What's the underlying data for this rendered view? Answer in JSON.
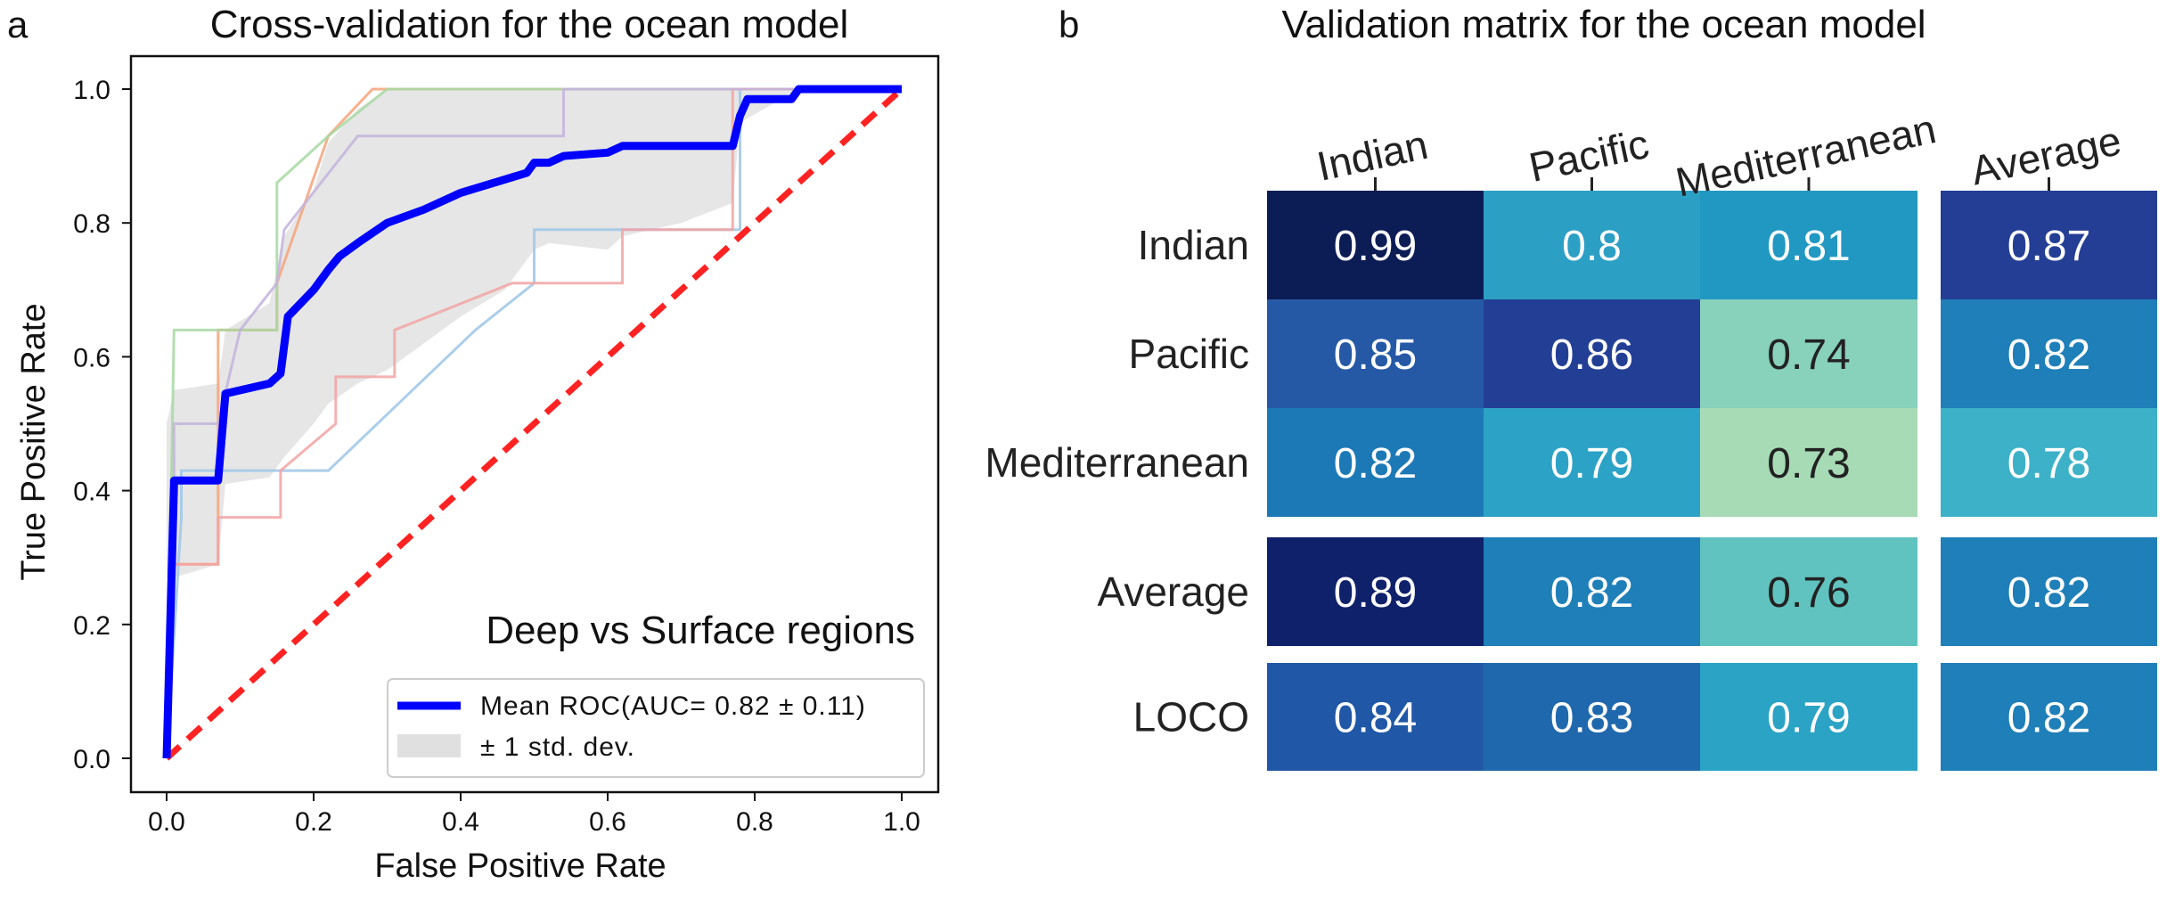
{
  "panels": {
    "a_letter": "a",
    "b_letter": "b"
  },
  "chart_data": [
    {
      "type": "line",
      "title": "Cross-validation for the ocean model",
      "xlabel": "False Positive Rate",
      "ylabel": "True Positive Rate",
      "xlim": [
        0.0,
        1.0
      ],
      "ylim": [
        0.0,
        1.0
      ],
      "xticks": [
        "0.0",
        "0.2",
        "0.4",
        "0.6",
        "0.8",
        "1.0"
      ],
      "yticks": [
        "0.0",
        "0.2",
        "0.4",
        "0.6",
        "0.8",
        "1.0"
      ],
      "grid": false,
      "annotation": "Deep vs Surface regions",
      "legend_position": "lower-right",
      "legend": [
        {
          "label": "Mean ROC(AUC= 0.82 ±  0.11)",
          "color": "#0000ff",
          "kind": "line"
        },
        {
          "label": "±  1 std. dev.",
          "color": "#e0e0e0",
          "kind": "patch"
        }
      ],
      "mean_roc": {
        "color": "#0000ff",
        "x": [
          0.0,
          0.01,
          0.01,
          0.07,
          0.08,
          0.14,
          0.155,
          0.165,
          0.2,
          0.22,
          0.235,
          0.26,
          0.3,
          0.35,
          0.4,
          0.46,
          0.49,
          0.5,
          0.52,
          0.54,
          0.6,
          0.62,
          0.7,
          0.77,
          0.78,
          0.79,
          0.85,
          0.86,
          0.9,
          0.95,
          1.0
        ],
        "y": [
          0.0,
          0.41,
          0.415,
          0.415,
          0.545,
          0.56,
          0.575,
          0.66,
          0.7,
          0.73,
          0.75,
          0.77,
          0.8,
          0.82,
          0.845,
          0.865,
          0.875,
          0.89,
          0.89,
          0.9,
          0.905,
          0.915,
          0.915,
          0.915,
          0.96,
          0.985,
          0.985,
          1.0,
          1.0,
          1.0,
          1.0
        ]
      },
      "chance_line": {
        "color": "#ff2222",
        "x": [
          0.0,
          1.0
        ],
        "y": [
          0.0,
          1.0
        ]
      },
      "std_band": {
        "color": "#d9d9d9",
        "x": [
          0.0,
          0.01,
          0.07,
          0.08,
          0.14,
          0.16,
          0.2,
          0.22,
          0.26,
          0.3,
          0.35,
          0.4,
          0.46,
          0.5,
          0.52,
          0.6,
          0.62,
          0.7,
          0.77,
          0.78,
          0.86,
          1.0
        ],
        "upper": [
          0.5,
          0.55,
          0.56,
          0.64,
          0.68,
          0.78,
          0.85,
          0.92,
          0.97,
          1.0,
          1.0,
          1.0,
          1.0,
          1.0,
          1.0,
          1.0,
          1.0,
          1.0,
          1.0,
          1.0,
          1.0,
          1.0
        ],
        "lower": [
          0.27,
          0.27,
          0.29,
          0.41,
          0.42,
          0.45,
          0.5,
          0.53,
          0.56,
          0.58,
          0.62,
          0.66,
          0.7,
          0.76,
          0.77,
          0.76,
          0.78,
          0.8,
          0.83,
          0.95,
          1.0,
          1.0
        ]
      },
      "folds": [
        {
          "color": "#9ec5e6",
          "x": [
            0.0,
            0.02,
            0.02,
            0.22,
            0.42,
            0.5,
            0.5,
            0.77,
            0.78,
            0.78,
            0.86,
            0.86,
            1.0
          ],
          "y": [
            0.0,
            0.36,
            0.43,
            0.43,
            0.64,
            0.71,
            0.79,
            0.79,
            0.79,
            1.0,
            1.0,
            1.0,
            1.0
          ]
        },
        {
          "color": "#f4a37a",
          "x": [
            0.0,
            0.01,
            0.01,
            0.07,
            0.07,
            0.15,
            0.15,
            0.22,
            0.28,
            0.32,
            1.0
          ],
          "y": [
            0.0,
            0.29,
            0.29,
            0.29,
            0.64,
            0.64,
            0.71,
            0.93,
            1.0,
            1.0,
            1.0
          ]
        },
        {
          "color": "#a7d8a2",
          "x": [
            0.0,
            0.01,
            0.01,
            0.15,
            0.15,
            0.22,
            0.3,
            1.0
          ],
          "y": [
            0.0,
            0.64,
            0.64,
            0.64,
            0.86,
            0.93,
            1.0,
            1.0
          ]
        },
        {
          "color": "#f2a3a3",
          "x": [
            0.0,
            0.01,
            0.01,
            0.07,
            0.07,
            0.155,
            0.155,
            0.23,
            0.23,
            0.31,
            0.31,
            0.47,
            0.47,
            0.62,
            0.62,
            0.77,
            0.77,
            1.0
          ],
          "y": [
            0.0,
            0.29,
            0.29,
            0.29,
            0.36,
            0.36,
            0.43,
            0.5,
            0.57,
            0.57,
            0.64,
            0.71,
            0.71,
            0.71,
            0.79,
            0.79,
            1.0,
            1.0
          ]
        },
        {
          "color": "#c3b3dc",
          "x": [
            0.0,
            0.01,
            0.01,
            0.07,
            0.1,
            0.15,
            0.16,
            0.26,
            0.31,
            0.54,
            0.54,
            1.0
          ],
          "y": [
            0.0,
            0.36,
            0.5,
            0.5,
            0.64,
            0.71,
            0.79,
            0.93,
            0.93,
            0.93,
            1.0,
            1.0
          ]
        }
      ]
    },
    {
      "type": "heatmap",
      "title": "Validation matrix for the ocean model",
      "columns": [
        "Indian",
        "Pacific",
        "Mediterranean",
        "Average"
      ],
      "rows": [
        "Indian",
        "Pacific",
        "Mediterranean",
        "Average",
        "LOCO"
      ],
      "values": [
        [
          0.99,
          0.8,
          0.81,
          0.87
        ],
        [
          0.85,
          0.86,
          0.74,
          0.82
        ],
        [
          0.82,
          0.79,
          0.73,
          0.78
        ],
        [
          0.89,
          0.82,
          0.76,
          0.82
        ],
        [
          0.84,
          0.83,
          0.79,
          0.82
        ]
      ],
      "labels": [
        [
          "0.99",
          "0.8",
          "0.81",
          "0.87"
        ],
        [
          "0.85",
          "0.86",
          "0.74",
          "0.82"
        ],
        [
          "0.82",
          "0.79",
          "0.73",
          "0.78"
        ],
        [
          "0.89",
          "0.82",
          "0.76",
          "0.82"
        ],
        [
          "0.84",
          "0.83",
          "0.79",
          "0.82"
        ]
      ],
      "colors": [
        [
          "#0c1d55",
          "#2c9fc5",
          "#2198c2",
          "#243e95"
        ],
        [
          "#2559a5",
          "#233f95",
          "#88d1bb",
          "#1f7fb8"
        ],
        [
          "#1d79b6",
          "#2ca2c6",
          "#a6dbb6",
          "#3cb1c8"
        ],
        [
          "#0f216a",
          "#1f7fb8",
          "#61c3bf",
          "#1f7fb8"
        ],
        [
          "#2057a6",
          "#2068ad",
          "#2aa3c5",
          "#1f7fb8"
        ]
      ],
      "text_colors": [
        [
          "#ffffff",
          "#ffffff",
          "#ffffff",
          "#ffffff"
        ],
        [
          "#ffffff",
          "#ffffff",
          "#222222",
          "#ffffff"
        ],
        [
          "#ffffff",
          "#ffffff",
          "#222222",
          "#ffffff"
        ],
        [
          "#ffffff",
          "#ffffff",
          "#222222",
          "#ffffff"
        ],
        [
          "#ffffff",
          "#ffffff",
          "#ffffff",
          "#ffffff"
        ]
      ]
    }
  ]
}
